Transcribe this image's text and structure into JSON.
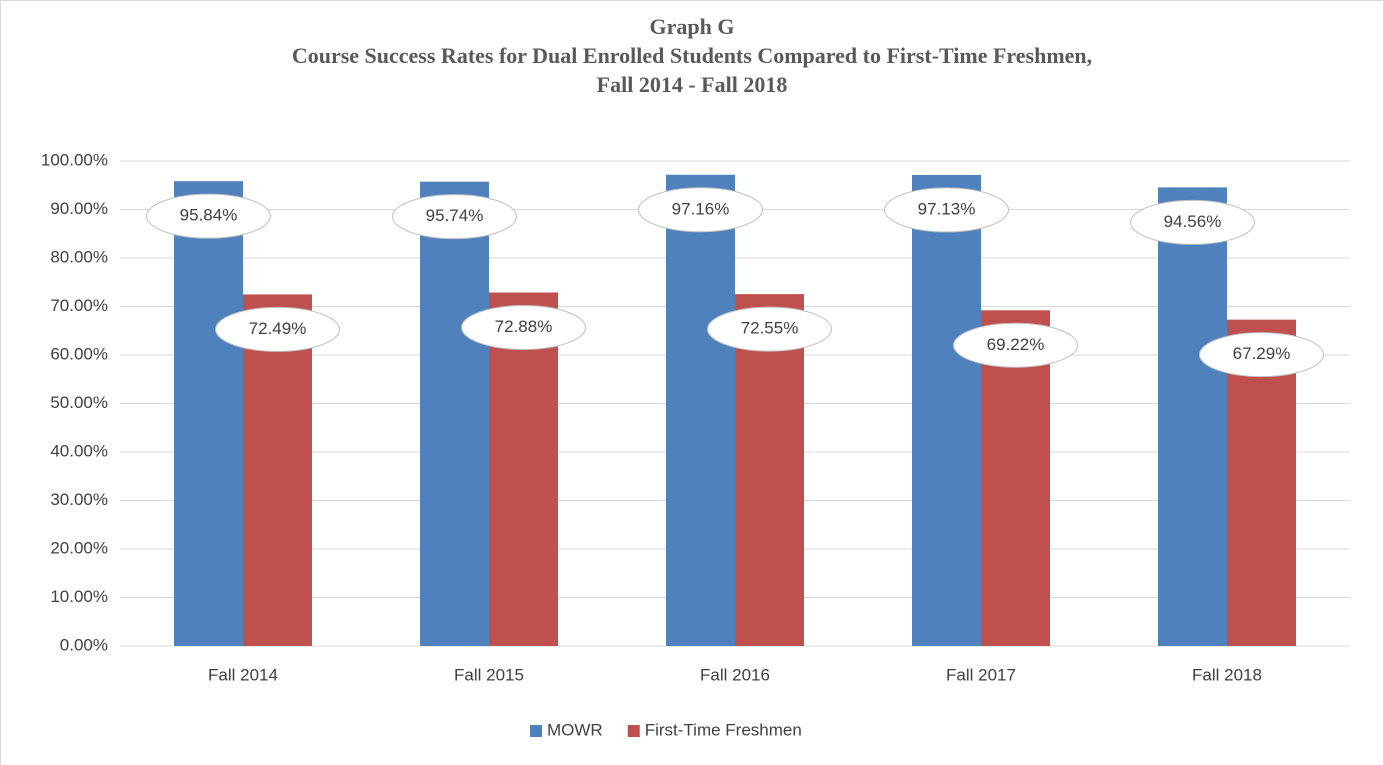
{
  "chart_data": {
    "type": "bar",
    "title": [
      "Graph G",
      "Course Success Rates for Dual Enrolled Students Compared to First-Time Freshmen,",
      "Fall 2014 - Fall 2018"
    ],
    "categories": [
      "Fall 2014",
      "Fall 2015",
      "Fall 2016",
      "Fall 2017",
      "Fall 2018"
    ],
    "series": [
      {
        "name": "MOWR",
        "color": "#4f81bd",
        "values": [
          95.84,
          95.74,
          97.16,
          97.13,
          94.56
        ],
        "value_labels": [
          "95.84%",
          "95.74%",
          "97.16%",
          "97.13%",
          "94.56%"
        ]
      },
      {
        "name": "First-Time Freshmen",
        "color": "#c0504d",
        "values": [
          72.49,
          72.88,
          72.55,
          69.22,
          67.29
        ],
        "value_labels": [
          "72.49%",
          "72.88%",
          "72.55%",
          "69.22%",
          "67.29%"
        ]
      }
    ],
    "ylim": [
      0,
      100
    ],
    "yticks": [
      {
        "value": 0,
        "label": "0.00%"
      },
      {
        "value": 10,
        "label": "10.00%"
      },
      {
        "value": 20,
        "label": "20.00%"
      },
      {
        "value": 30,
        "label": "30.00%"
      },
      {
        "value": 40,
        "label": "40.00%"
      },
      {
        "value": 50,
        "label": "50.00%"
      },
      {
        "value": 60,
        "label": "60.00%"
      },
      {
        "value": 70,
        "label": "70.00%"
      },
      {
        "value": 80,
        "label": "80.00%"
      },
      {
        "value": 90,
        "label": "90.00%"
      },
      {
        "value": 100,
        "label": "100.00%"
      }
    ],
    "grid": true,
    "legend": "bottom"
  }
}
